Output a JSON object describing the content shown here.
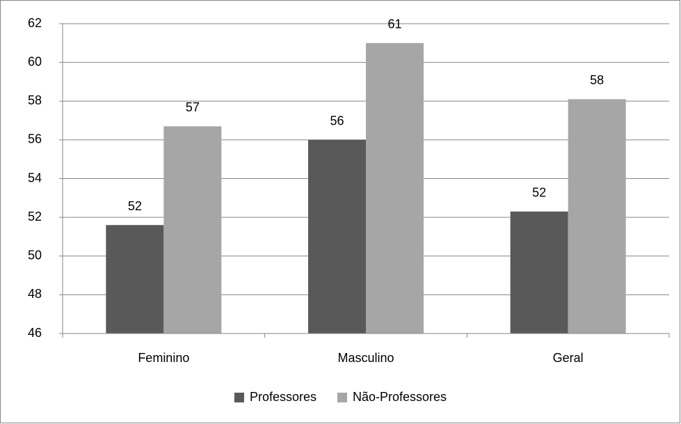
{
  "chart_data": {
    "type": "bar",
    "categories": [
      "Feminino",
      "Masculino",
      "Geral"
    ],
    "series": [
      {
        "name": "Professores",
        "color": "#595959",
        "values": [
          51.6,
          56.0,
          52.3
        ],
        "value_labels": [
          "52",
          "56",
          "52"
        ]
      },
      {
        "name": "Não-Professores",
        "color": "#a6a6a6",
        "values": [
          56.7,
          61.0,
          58.1
        ],
        "value_labels": [
          "57",
          "61",
          "58"
        ]
      }
    ],
    "ylim": [
      46,
      62
    ],
    "yticks": [
      46,
      48,
      50,
      52,
      54,
      56,
      58,
      60,
      62
    ],
    "grid": true,
    "legend": "bottom"
  }
}
